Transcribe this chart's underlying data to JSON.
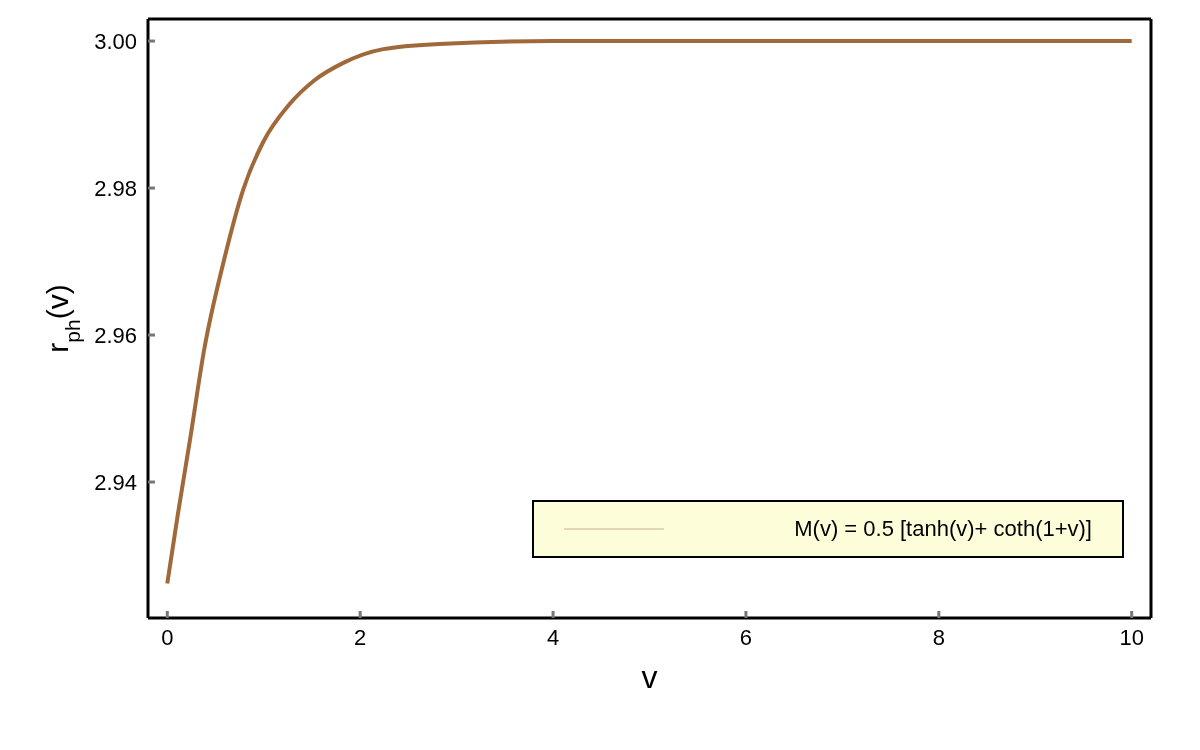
{
  "chart_data": {
    "type": "line",
    "xlabel": "v",
    "ylabel": "r$_{ph}$(v)",
    "xlim": [
      -0.2,
      10.2
    ],
    "ylim": [
      2.9215,
      3.003
    ],
    "xticks": [
      0,
      2,
      4,
      6,
      8,
      10
    ],
    "yticks": [
      2.94,
      2.96,
      2.98,
      {
        "value": 3.0,
        "label": "3.00"
      }
    ],
    "grid": false,
    "legend": "bottom right",
    "marker": "none",
    "line_style": "solid",
    "series": [
      {
        "name": "M(v) = 0.5 [tanh(v)+ coth(1+v)]",
        "color": "#a0693a",
        "x": [
          0,
          0.107,
          0.235,
          0.385,
          0.577,
          0.79,
          1.0,
          1.26,
          1.52,
          1.82,
          2.24,
          2.82,
          4,
          6,
          8,
          10
        ],
        "values": [
          2.9262,
          2.9354,
          2.9457,
          2.9582,
          2.9696,
          2.9799,
          2.9864,
          2.9913,
          2.9946,
          2.997,
          2.9989,
          2.9996,
          3.0,
          3.0,
          3.0,
          3.0
        ]
      }
    ]
  }
}
